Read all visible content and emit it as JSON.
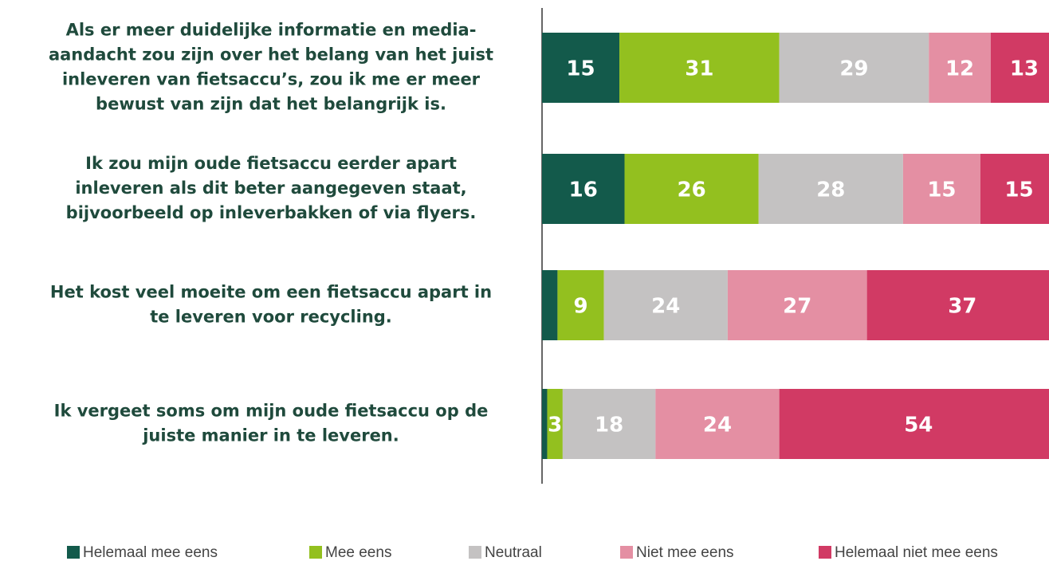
{
  "chart_data": {
    "type": "stacked-bar-horizontal",
    "categories": [
      [
        "Als er meer duidelijke informatie en media-",
        "aandacht zou zijn over het belang van het juist",
        "inleveren van fietsaccu’s, zou ik me er meer",
        "bewust van zijn dat het belangrijk is."
      ],
      [
        "Ik zou mijn oude fietsaccu eerder apart",
        "inleveren als dit beter aangegeven staat,",
        "bijvoorbeeld op inleverbakken of via flyers."
      ],
      [
        "Het kost veel moeite om een fietsaccu apart in",
        "te leveren voor recycling."
      ],
      [
        "Ik vergeet soms om mijn oude fietsaccu op de",
        "juiste manier in te leveren."
      ]
    ],
    "series": [
      {
        "name": "Helemaal mee eens",
        "color": "#135a4b",
        "values": [
          15,
          16,
          3,
          1
        ],
        "value_labels": [
          "15",
          "16",
          null,
          null
        ]
      },
      {
        "name": "Mee eens",
        "color": "#93c01f",
        "values": [
          31,
          26,
          9,
          3
        ]
      },
      {
        "name": "Neutraal",
        "color": "#c4c2c2",
        "values": [
          29,
          28,
          24,
          18
        ]
      },
      {
        "name": "Niet mee eens",
        "color": "#e48fa3",
        "values": [
          12,
          15,
          27,
          24
        ]
      },
      {
        "name": "Helemaal niet mee eens",
        "color": "#d13a64",
        "values": [
          13,
          15,
          37,
          54
        ]
      }
    ],
    "xlim": [
      0,
      100
    ]
  }
}
